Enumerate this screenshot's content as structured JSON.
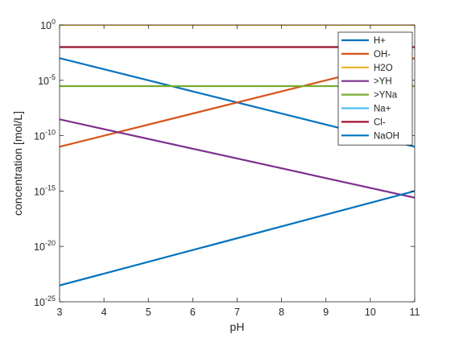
{
  "chart_data": {
    "type": "line",
    "title": "",
    "xlabel": "pH",
    "ylabel": "concentration [mol/L]",
    "xlim": [
      3,
      11
    ],
    "ylim": [
      1e-25,
      1
    ],
    "yscale": "log",
    "x_ticks": [
      3,
      4,
      5,
      6,
      7,
      8,
      9,
      10,
      11
    ],
    "y_ticks": [
      {
        "base": "10",
        "exp": "0",
        "value": 1
      },
      {
        "base": "10",
        "exp": "-5",
        "value": 1e-05
      },
      {
        "base": "10",
        "exp": "-10",
        "value": 1e-10
      },
      {
        "base": "10",
        "exp": "-15",
        "value": 1e-15
      },
      {
        "base": "10",
        "exp": "-20",
        "value": 1e-20
      },
      {
        "base": "10",
        "exp": "-25",
        "value": 1e-25
      }
    ],
    "grid": false,
    "legend_position": "top-right",
    "series": [
      {
        "name": "H+",
        "color": "#0072BD",
        "x": [
          3,
          11
        ],
        "y": [
          0.001,
          1e-11
        ]
      },
      {
        "name": "OH-",
        "color": "#D95319",
        "x": [
          3,
          11
        ],
        "y": [
          1e-11,
          0.001
        ]
      },
      {
        "name": "H2O",
        "color": "#EDB120",
        "x": [
          3,
          11
        ],
        "y": [
          1,
          1
        ]
      },
      {
        "name": ">YH",
        "color": "#7E2F8E",
        "x": [
          3,
          11
        ],
        "y": [
          3e-09,
          2.5e-16
        ]
      },
      {
        "name": ">YNa",
        "color": "#77AC30",
        "x": [
          3,
          11
        ],
        "y": [
          3e-06,
          3e-06
        ]
      },
      {
        "name": "Na+",
        "color": "#4DBEEE",
        "x": [
          3,
          11
        ],
        "y": [
          0.01,
          0.01
        ]
      },
      {
        "name": "Cl-",
        "color": "#A2142F",
        "x": [
          3,
          11
        ],
        "y": [
          0.01,
          0.01
        ]
      },
      {
        "name": "NaOH",
        "color": "#0072BD",
        "x": [
          3,
          11
        ],
        "y": [
          3e-24,
          1e-15
        ]
      }
    ]
  }
}
